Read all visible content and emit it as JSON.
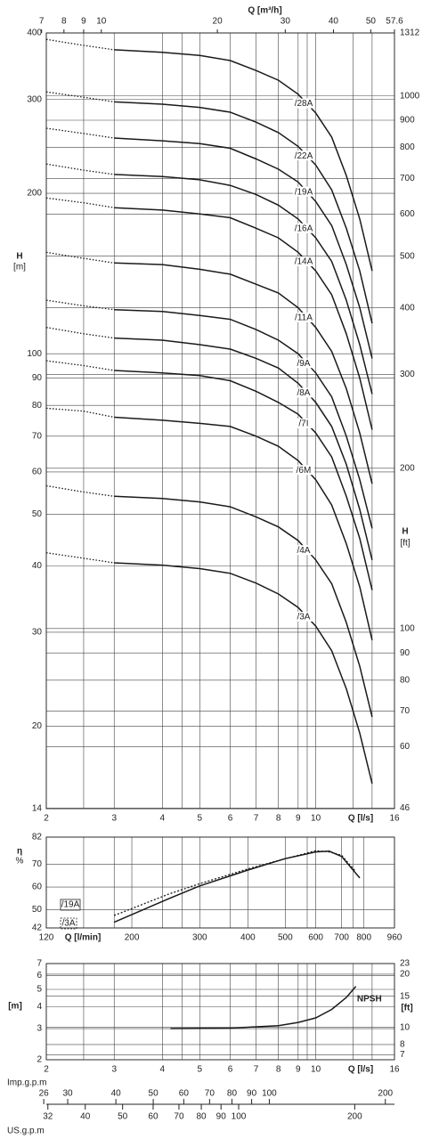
{
  "chart_data": [
    {
      "type": "line",
      "x_log": true,
      "y_log": true,
      "grid": true,
      "x_label": "Q [l/s]",
      "xlim": [
        2,
        16
      ],
      "xticks": [
        2,
        3,
        4,
        5,
        6,
        7,
        8,
        9,
        10,
        16
      ],
      "x_minor_grid": [
        2.5,
        4.5,
        9.5,
        12.5,
        14
      ],
      "x2_label": "Q [m³/h]",
      "x2lim": [
        7.2,
        57.6
      ],
      "x2ticks": [
        7,
        8,
        9,
        10,
        20,
        30,
        40,
        50,
        57.6
      ],
      "y_label": "H",
      "y_unit": "[m]",
      "ylim": [
        14,
        400
      ],
      "yticks": [
        14,
        20,
        30,
        40,
        50,
        60,
        70,
        80,
        90,
        100,
        200,
        300,
        400
      ],
      "y2_label": "H",
      "y2_unit": "[ft]",
      "y2lim": [
        45.93,
        1312.34
      ],
      "y2ticks": [
        46,
        60,
        70,
        80,
        90,
        100,
        200,
        300,
        400,
        500,
        600,
        700,
        800,
        900,
        1000,
        1312
      ],
      "series": [
        {
          "name": "/28A",
          "color": "#1a1a1a",
          "x": [
            3,
            4,
            5,
            6,
            7,
            8,
            9,
            10,
            11,
            12,
            13,
            14
          ],
          "values": [
            372,
            368,
            363,
            355,
            340,
            326,
            307,
            283,
            255,
            216,
            179,
            143
          ],
          "extension_x": [
            2,
            2.5,
            3
          ],
          "extension_values": [
            389,
            379,
            372
          ]
        },
        {
          "name": "/22A",
          "color": "#1a1a1a",
          "x": [
            3,
            4,
            5,
            6,
            7,
            8,
            9,
            10,
            11,
            12,
            13,
            14
          ],
          "values": [
            297,
            294,
            290,
            284,
            272,
            260,
            245,
            226,
            203,
            172,
            143,
            114
          ],
          "extension_x": [
            2,
            2.5,
            3
          ],
          "extension_values": [
            310,
            303,
            297
          ]
        },
        {
          "name": "/19A",
          "color": "#1a1a1a",
          "x": [
            3,
            4,
            5,
            6,
            7,
            8,
            9,
            10,
            11,
            12,
            13,
            14
          ],
          "values": [
            254,
            251,
            248,
            243,
            232,
            222,
            210,
            193,
            174,
            147,
            122,
            98
          ],
          "extension_x": [
            2,
            2.5,
            3
          ],
          "extension_values": [
            265,
            259,
            254
          ]
        },
        {
          "name": "/16A",
          "color": "#1a1a1a",
          "x": [
            3,
            4,
            5,
            6,
            7,
            8,
            9,
            10,
            11,
            12,
            13,
            14
          ],
          "values": [
            217,
            215,
            212,
            207,
            199,
            190,
            179,
            165,
            149,
            126,
            104,
            84
          ],
          "extension_x": [
            2,
            2.5,
            3
          ],
          "extension_values": [
            227,
            221,
            217
          ]
        },
        {
          "name": "/14A",
          "color": "#1a1a1a",
          "x": [
            3,
            4,
            5,
            6,
            7,
            8,
            9,
            10,
            11,
            12,
            13,
            14
          ],
          "values": [
            188,
            186,
            183,
            180,
            172,
            165,
            155,
            143,
            129,
            109,
            90,
            72
          ],
          "extension_x": [
            2,
            2.5,
            3
          ],
          "extension_values": [
            196,
            192,
            188
          ]
        },
        {
          "name": "/11A",
          "color": "#1a1a1a",
          "x": [
            3,
            4,
            5,
            6,
            7,
            8,
            9,
            10,
            11,
            12,
            13,
            14
          ],
          "values": [
            148,
            147,
            144,
            141,
            135,
            130,
            122,
            112,
            101,
            86,
            71,
            57
          ],
          "extension_x": [
            2,
            2.5,
            3
          ],
          "extension_values": [
            155,
            151,
            148
          ]
        },
        {
          "name": "/9A",
          "color": "#1a1a1a",
          "x": [
            3,
            4,
            5,
            6,
            7,
            8,
            9,
            10,
            11,
            12,
            13,
            14
          ],
          "values": [
            121,
            120,
            118,
            116,
            111,
            106,
            100,
            92,
            83,
            70,
            58,
            47
          ],
          "extension_x": [
            2,
            2.5,
            3
          ],
          "extension_values": [
            126,
            123,
            121
          ]
        },
        {
          "name": "/8A",
          "color": "#1a1a1a",
          "x": [
            3,
            4,
            5,
            6,
            7,
            8,
            9,
            10,
            11,
            12,
            13,
            14
          ],
          "values": [
            107,
            106,
            104,
            102,
            98,
            94,
            88,
            81,
            73,
            62,
            51,
            41
          ],
          "extension_x": [
            2,
            2.5,
            3
          ],
          "extension_values": [
            112,
            109,
            107
          ]
        },
        {
          "name": "/7I",
          "color": "#1a1a1a",
          "x": [
            3,
            4,
            5,
            6,
            7,
            8,
            9,
            10,
            11,
            12,
            13,
            14
          ],
          "values": [
            93,
            92,
            91,
            89,
            85,
            81,
            77,
            71,
            64,
            54,
            45,
            36
          ],
          "extension_x": [
            2,
            2.5,
            3
          ],
          "extension_values": [
            97,
            95,
            93
          ]
        },
        {
          "name": "/6M",
          "color": "#1a1a1a",
          "x": [
            3,
            4,
            5,
            6,
            7,
            8,
            9,
            10,
            11,
            12,
            13,
            14
          ],
          "values": [
            76,
            75,
            74,
            73,
            70,
            67,
            63,
            58,
            52,
            44,
            36.5,
            29
          ],
          "extension_x": [
            2,
            2.5,
            3
          ],
          "extension_values": [
            79,
            78,
            76
          ]
        },
        {
          "name": "/4A",
          "color": "#1a1a1a",
          "x": [
            3,
            4,
            5,
            6,
            7,
            8,
            9,
            10,
            11,
            12,
            13,
            14
          ],
          "values": [
            54,
            53.5,
            52.7,
            51.6,
            49.4,
            47.3,
            44.6,
            41,
            37,
            31.3,
            25.9,
            20.8
          ],
          "extension_x": [
            2,
            2.5,
            3
          ],
          "extension_values": [
            56.5,
            55,
            54
          ]
        },
        {
          "name": "/3A",
          "color": "#1a1a1a",
          "x": [
            3,
            4,
            5,
            6,
            7,
            8,
            9,
            10,
            11,
            12,
            13,
            14
          ],
          "values": [
            40.5,
            40.1,
            39.5,
            38.7,
            37.1,
            35.4,
            33.4,
            30.8,
            27.7,
            23.5,
            19.4,
            15.6
          ],
          "extension_x": [
            2,
            2.5,
            3
          ],
          "extension_values": [
            42.3,
            41.3,
            40.5
          ]
        }
      ]
    },
    {
      "type": "line",
      "x_log": true,
      "y_log": false,
      "grid": true,
      "x_label": "Q [l/min]",
      "xlim": [
        120,
        960
      ],
      "xticks": [
        120,
        200,
        300,
        400,
        500,
        600,
        700,
        800,
        960
      ],
      "x_minor_grid": [
        150,
        180,
        240,
        270,
        360,
        570,
        750
      ],
      "y_label": "η",
      "y_unit": "%",
      "ylim": [
        42,
        82
      ],
      "yticks": [
        42,
        50,
        60,
        70,
        82
      ],
      "series": [
        {
          "name": "/19A",
          "color": "#1a1a1a",
          "dash": true,
          "x": [
            180,
            250,
            300,
            400,
            500,
            600,
            650,
            700,
            760
          ],
          "values": [
            47.5,
            57,
            61.5,
            68,
            72.5,
            76,
            75.5,
            74,
            67
          ]
        },
        {
          "name": "/3A",
          "color": "#1a1a1a",
          "dash": false,
          "x": [
            180,
            250,
            300,
            400,
            500,
            600,
            650,
            700,
            780
          ],
          "values": [
            44.5,
            55,
            60.5,
            67.5,
            72.5,
            75.5,
            75.8,
            73.5,
            64
          ]
        }
      ]
    },
    {
      "type": "line",
      "x_log": true,
      "y_log": true,
      "grid": true,
      "x_label": "Q [l/s]",
      "xlim": [
        2,
        16
      ],
      "xticks": [
        2,
        3,
        4,
        5,
        6,
        7,
        8,
        9,
        10,
        16
      ],
      "x_minor_grid": [
        2.5,
        4.5,
        9.5,
        12.5,
        14
      ],
      "y_label": "[m]",
      "ylim": [
        2,
        7
      ],
      "yticks": [
        2,
        3,
        4,
        5,
        6,
        7
      ],
      "y2_label": "[ft]",
      "y2lim": [
        6.5617,
        22.966
      ],
      "y2ticks": [
        7,
        8,
        10,
        15,
        20,
        23
      ],
      "series": [
        {
          "name": "NPSH",
          "color": "#1a1a1a",
          "x": [
            4.2,
            6,
            8,
            9,
            10,
            11,
            12,
            12.7
          ],
          "values": [
            3.0,
            3.02,
            3.12,
            3.25,
            3.45,
            3.85,
            4.5,
            5.2
          ]
        }
      ],
      "imp_label": "Imp.g.p.m",
      "imp_lim": [
        26.4,
        211.2
      ],
      "imp_ticks": [
        26,
        30,
        40,
        50,
        60,
        70,
        80,
        90,
        100,
        200
      ],
      "us_label": "US.g.p.m",
      "us_lim": [
        31.7,
        253.6
      ],
      "us_ticks": [
        32,
        40,
        50,
        60,
        70,
        80,
        90,
        100,
        200
      ]
    }
  ]
}
